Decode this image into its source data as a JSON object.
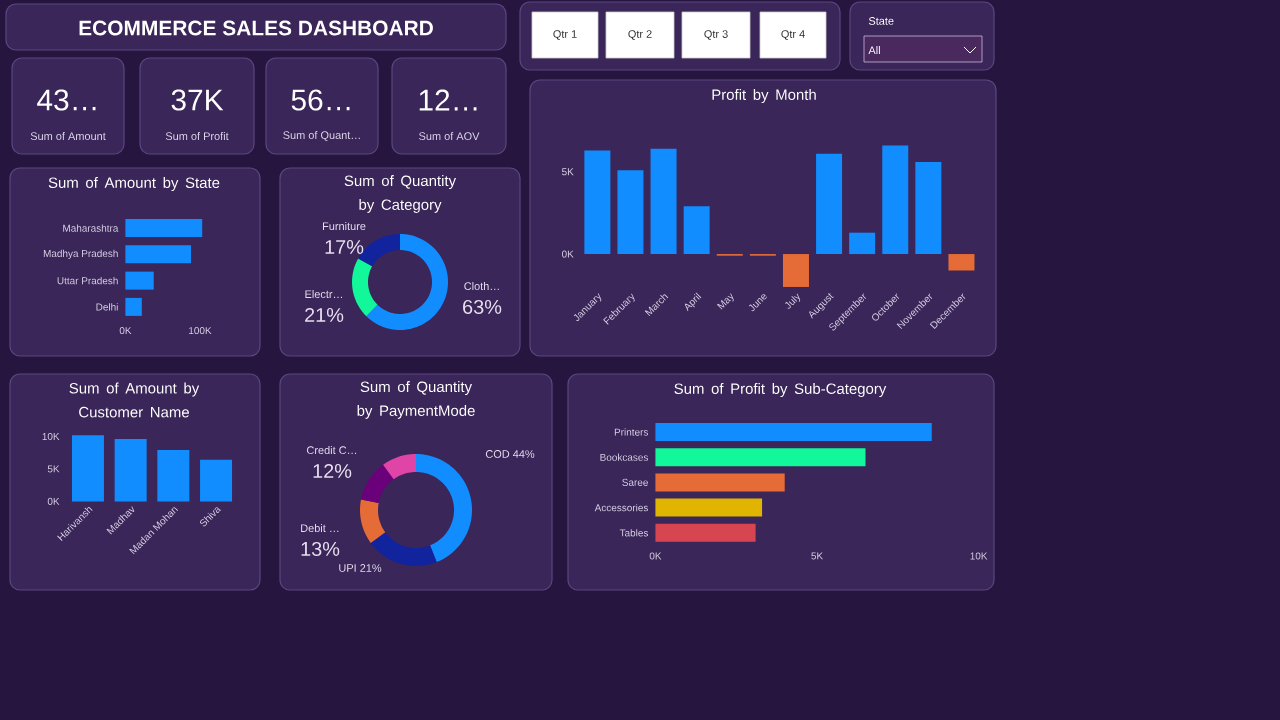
{
  "chart_data": [
    {
      "type": "other",
      "title": "ECOMMERCE SALES DASHBOARD"
    },
    {
      "type": "other",
      "annotations": [
        "Qtr 1",
        "Qtr 2",
        "Qtr 3",
        "Qtr 4",
        "State",
        "All"
      ]
    },
    {
      "type": "other",
      "annotations": [
        "43…",
        "Sum of Amount",
        "37K",
        "Sum of Profit",
        "56…",
        "Sum of Quant…",
        "12…",
        "Sum of AOV"
      ]
    },
    {
      "type": "bar",
      "title": "Profit by Month",
      "categories": [
        "January",
        "February",
        "March",
        "April",
        "May",
        "June",
        "July",
        "August",
        "September",
        "October",
        "November",
        "December"
      ],
      "values": [
        6300,
        5100,
        6400,
        2900,
        -100,
        -100,
        -2000,
        6100,
        1300,
        6600,
        5600,
        -1000
      ],
      "colors": [
        "#118dff",
        "#118dff",
        "#118dff",
        "#118dff",
        "#e66c37",
        "#e66c37",
        "#e66c37",
        "#118dff",
        "#118dff",
        "#118dff",
        "#118dff",
        "#e66c37"
      ],
      "ylim": [
        -2100,
        6900
      ],
      "yticks": [
        {
          "value": 0,
          "label": "0K"
        },
        {
          "value": 5000,
          "label": "5K"
        }
      ]
    },
    {
      "type": "bar",
      "title": "Sum of Amount by State",
      "orientation": "horizontal",
      "categories": [
        "Maharashtra",
        "Madhya Pradesh",
        "Uttar Pradesh",
        "Delhi"
      ],
      "values": [
        103000,
        88000,
        38000,
        22000
      ],
      "color": "#118dff",
      "xlim": [
        0,
        110000
      ],
      "xticks": [
        {
          "value": 0,
          "label": "0K"
        },
        {
          "value": 100000,
          "label": "100K"
        }
      ]
    },
    {
      "type": "donut",
      "title": "Sum of Quantity by Category",
      "categories": [
        "Cloth…",
        "Electr…",
        "Furniture"
      ],
      "values": [
        63,
        21,
        17
      ],
      "value_labels": [
        "63%",
        "21%",
        "17%"
      ],
      "colors": [
        "#118dff",
        "#12f79a",
        "#12239e"
      ]
    },
    {
      "type": "bar",
      "title": "Sum of Amount by Customer Name",
      "categories": [
        "Harivansh",
        "Madhav",
        "Madan Mohan",
        "Shiva"
      ],
      "values": [
        10200,
        9600,
        7900,
        6400
      ],
      "color": "#118dff",
      "ylim": [
        0,
        11000
      ],
      "yticks": [
        {
          "value": 0,
          "label": "0K"
        },
        {
          "value": 5000,
          "label": "5K"
        },
        {
          "value": 10000,
          "label": "10K"
        }
      ]
    },
    {
      "type": "donut",
      "title": "Sum of Quantity by PaymentMode",
      "categories": [
        "COD",
        "UPI",
        "Debit …",
        "Credit C…",
        null
      ],
      "values": [
        44,
        21,
        13,
        12,
        10
      ],
      "value_labels": [
        "44%",
        "21%",
        "13%",
        "12%",
        null
      ],
      "colors": [
        "#118dff",
        "#12239e",
        "#e66c37",
        "#6b007b",
        "#e044a7"
      ]
    },
    {
      "type": "bar",
      "title": "Sum of Profit by Sub-Category",
      "orientation": "horizontal",
      "categories": [
        "Printers",
        "Bookcases",
        "Saree",
        "Accessories",
        "Tables"
      ],
      "values": [
        8550,
        6500,
        4000,
        3300,
        3100
      ],
      "colors": [
        "#118dff",
        "#12f79a",
        "#e66c37",
        "#e0b400",
        "#d64550"
      ],
      "xlim": [
        0,
        10000
      ],
      "xticks": [
        {
          "value": 0,
          "label": "0K"
        },
        {
          "value": 5000,
          "label": "5K"
        },
        {
          "value": 10000,
          "label": "10K"
        }
      ]
    }
  ]
}
